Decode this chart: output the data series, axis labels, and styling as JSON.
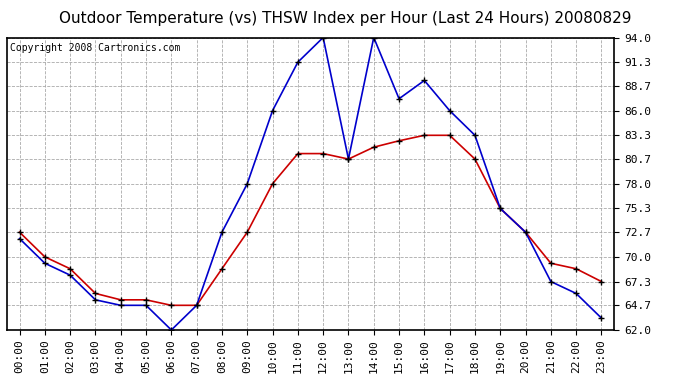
{
  "title": "Outdoor Temperature (vs) THSW Index per Hour (Last 24 Hours) 20080829",
  "copyright": "Copyright 2008 Cartronics.com",
  "hours": [
    "00:00",
    "01:00",
    "02:00",
    "03:00",
    "04:00",
    "05:00",
    "06:00",
    "07:00",
    "08:00",
    "09:00",
    "10:00",
    "11:00",
    "12:00",
    "13:00",
    "14:00",
    "15:00",
    "16:00",
    "17:00",
    "18:00",
    "19:00",
    "20:00",
    "21:00",
    "22:00",
    "23:00"
  ],
  "temp_red": [
    72.7,
    70.0,
    68.7,
    66.0,
    65.3,
    65.3,
    64.7,
    64.7,
    68.7,
    72.7,
    78.0,
    81.3,
    81.3,
    80.7,
    82.0,
    82.7,
    83.3,
    83.3,
    80.7,
    75.3,
    72.7,
    69.3,
    68.7,
    67.3
  ],
  "thsw_blue": [
    72.0,
    69.3,
    68.0,
    65.3,
    64.7,
    64.7,
    62.0,
    64.7,
    72.7,
    78.0,
    86.0,
    91.3,
    94.0,
    80.7,
    94.0,
    87.3,
    89.3,
    86.0,
    83.3,
    75.3,
    72.7,
    67.3,
    66.0,
    63.3
  ],
  "ylim_min": 62.0,
  "ylim_max": 94.0,
  "yticks": [
    62.0,
    64.7,
    67.3,
    70.0,
    72.7,
    75.3,
    78.0,
    80.7,
    83.3,
    86.0,
    88.7,
    91.3,
    94.0
  ],
  "bg_color": "#ffffff",
  "plot_bg_color": "#ffffff",
  "grid_color": "#aaaaaa",
  "red_color": "#cc0000",
  "blue_color": "#0000cc",
  "title_fontsize": 11,
  "copyright_fontsize": 7,
  "tick_fontsize": 8
}
